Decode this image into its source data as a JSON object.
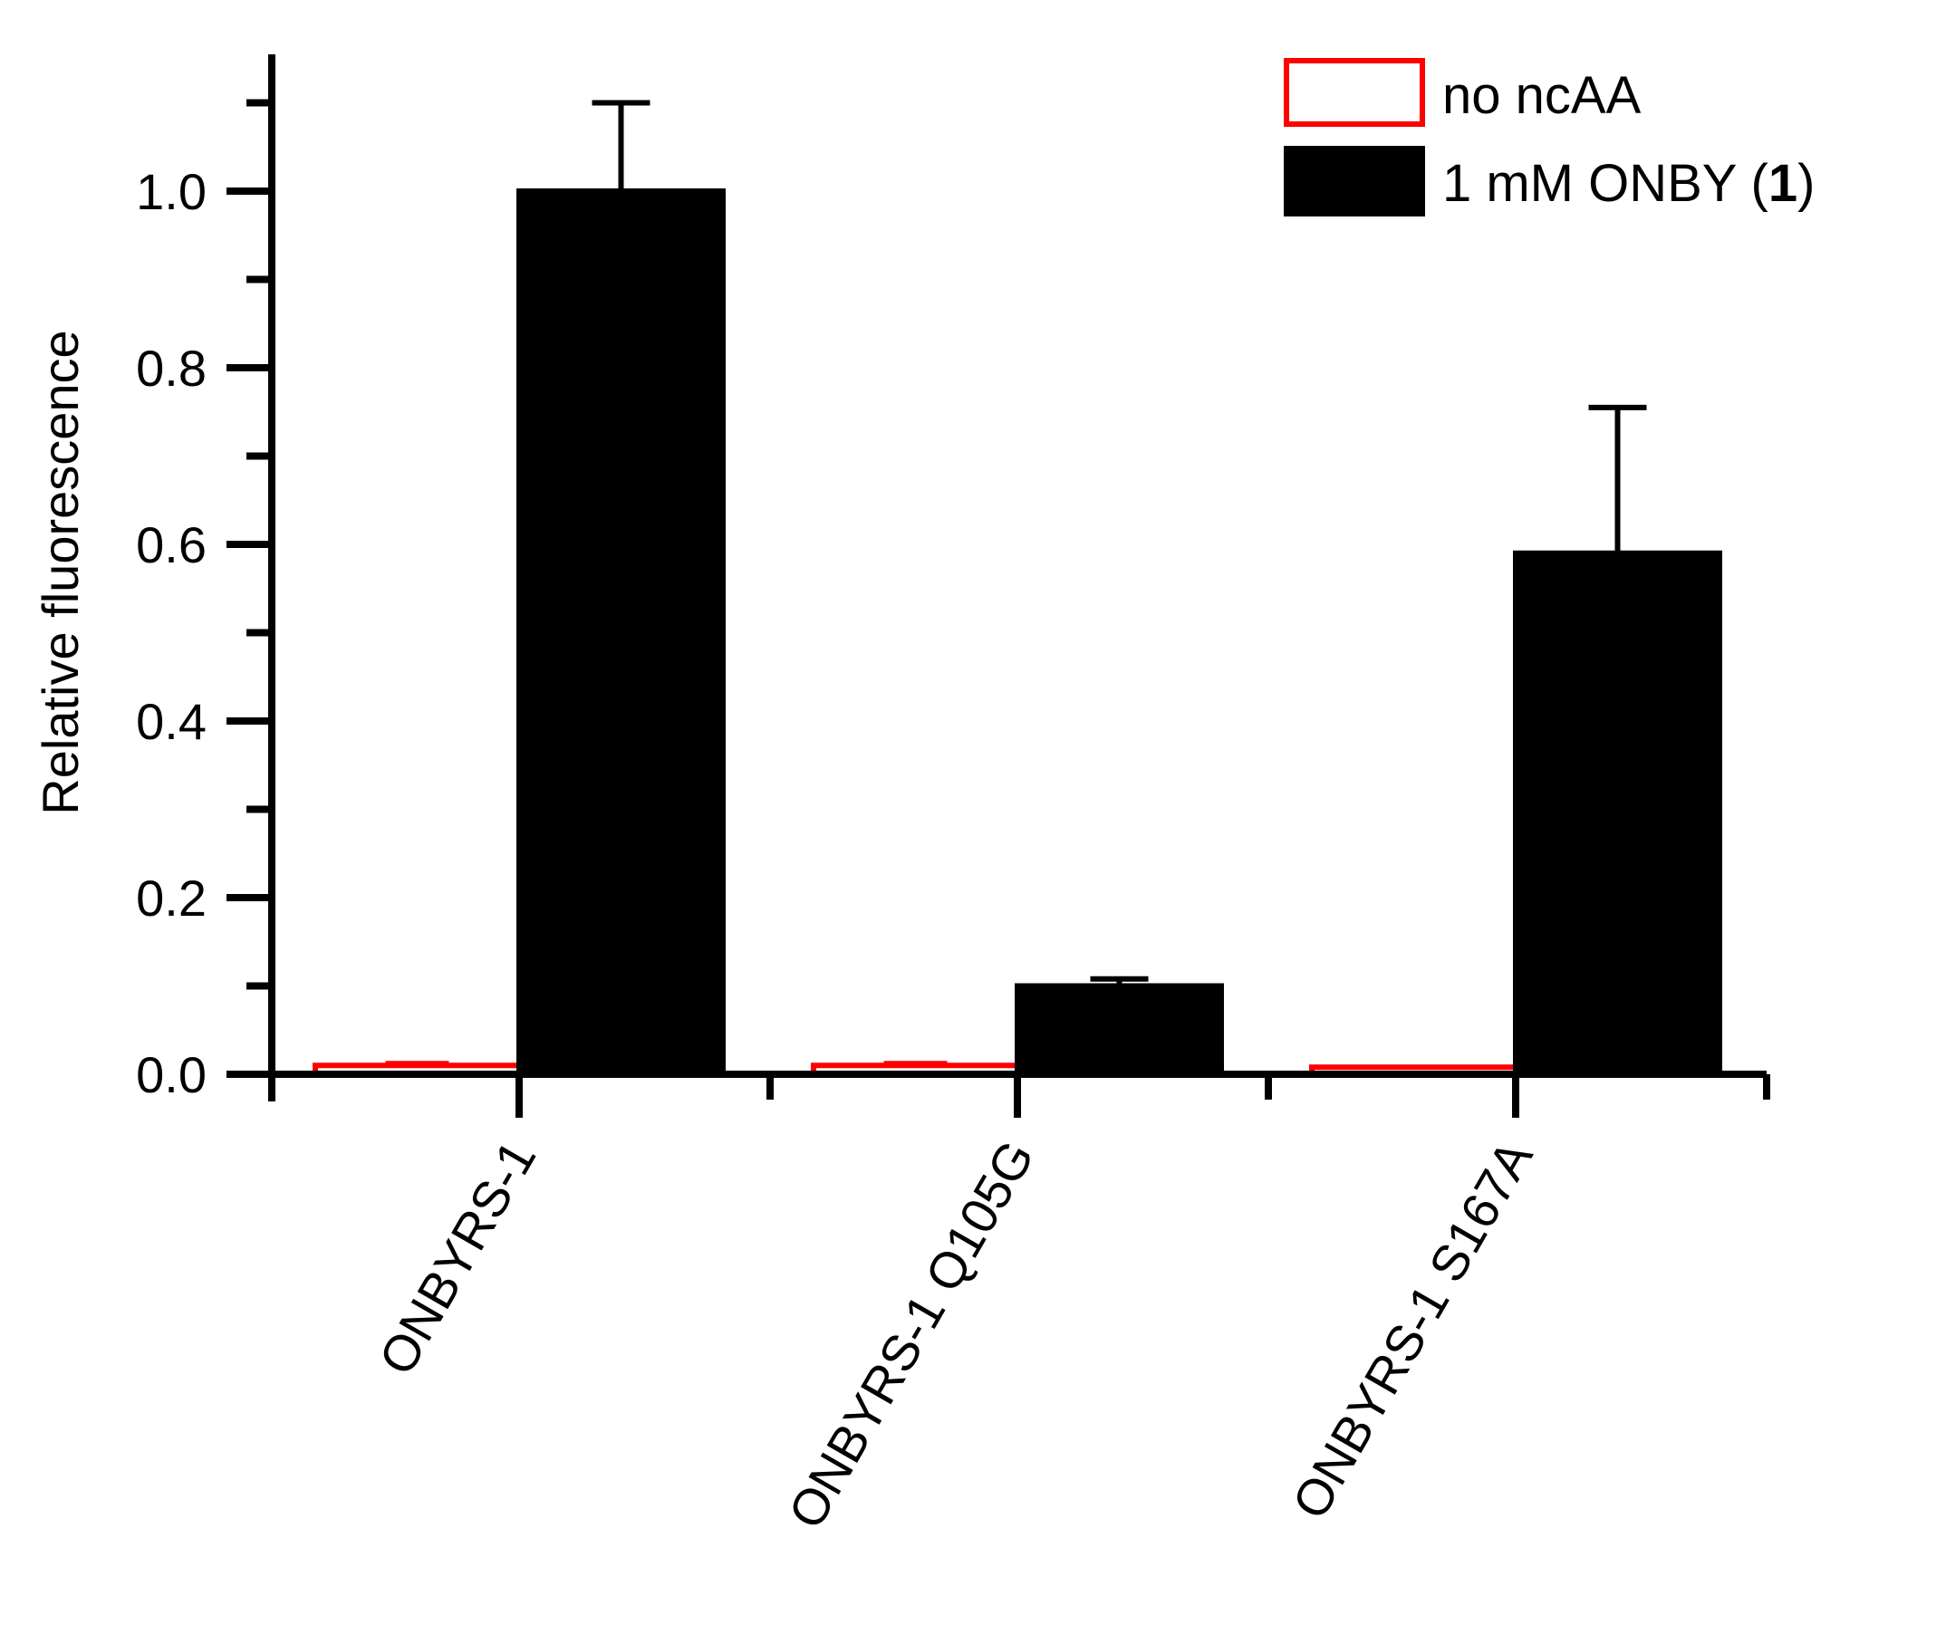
{
  "chart_data": {
    "type": "bar",
    "title": "",
    "xlabel": "",
    "ylabel": "Relative fluorescence",
    "ylim": [
      0,
      1.15
    ],
    "y_ticks": [
      "0.0",
      "0.2",
      "0.4",
      "0.6",
      "0.8",
      "1.0"
    ],
    "y_tick_values": [
      0,
      0.2,
      0.4,
      0.6,
      0.8,
      1.0
    ],
    "grid": false,
    "legend_position": "top-right",
    "categories": [
      "ONBYRS-1",
      "ONBYRS-1 Q105G",
      "ONBYRS-1 S167A"
    ],
    "series": [
      {
        "name": "no ncAA",
        "values": [
          0.01,
          0.01,
          0.008
        ],
        "errors": [
          0.002,
          0.002,
          0.0
        ],
        "fill": "#ffffff",
        "stroke": "#ff0000"
      },
      {
        "name": "1 mM ONBY (",
        "name_bold": "1",
        "name_suffix": ")",
        "values": [
          1.0,
          0.1,
          0.59
        ],
        "errors": [
          0.1,
          0.008,
          0.165
        ],
        "fill": "#000000",
        "stroke": "#000000"
      }
    ]
  }
}
